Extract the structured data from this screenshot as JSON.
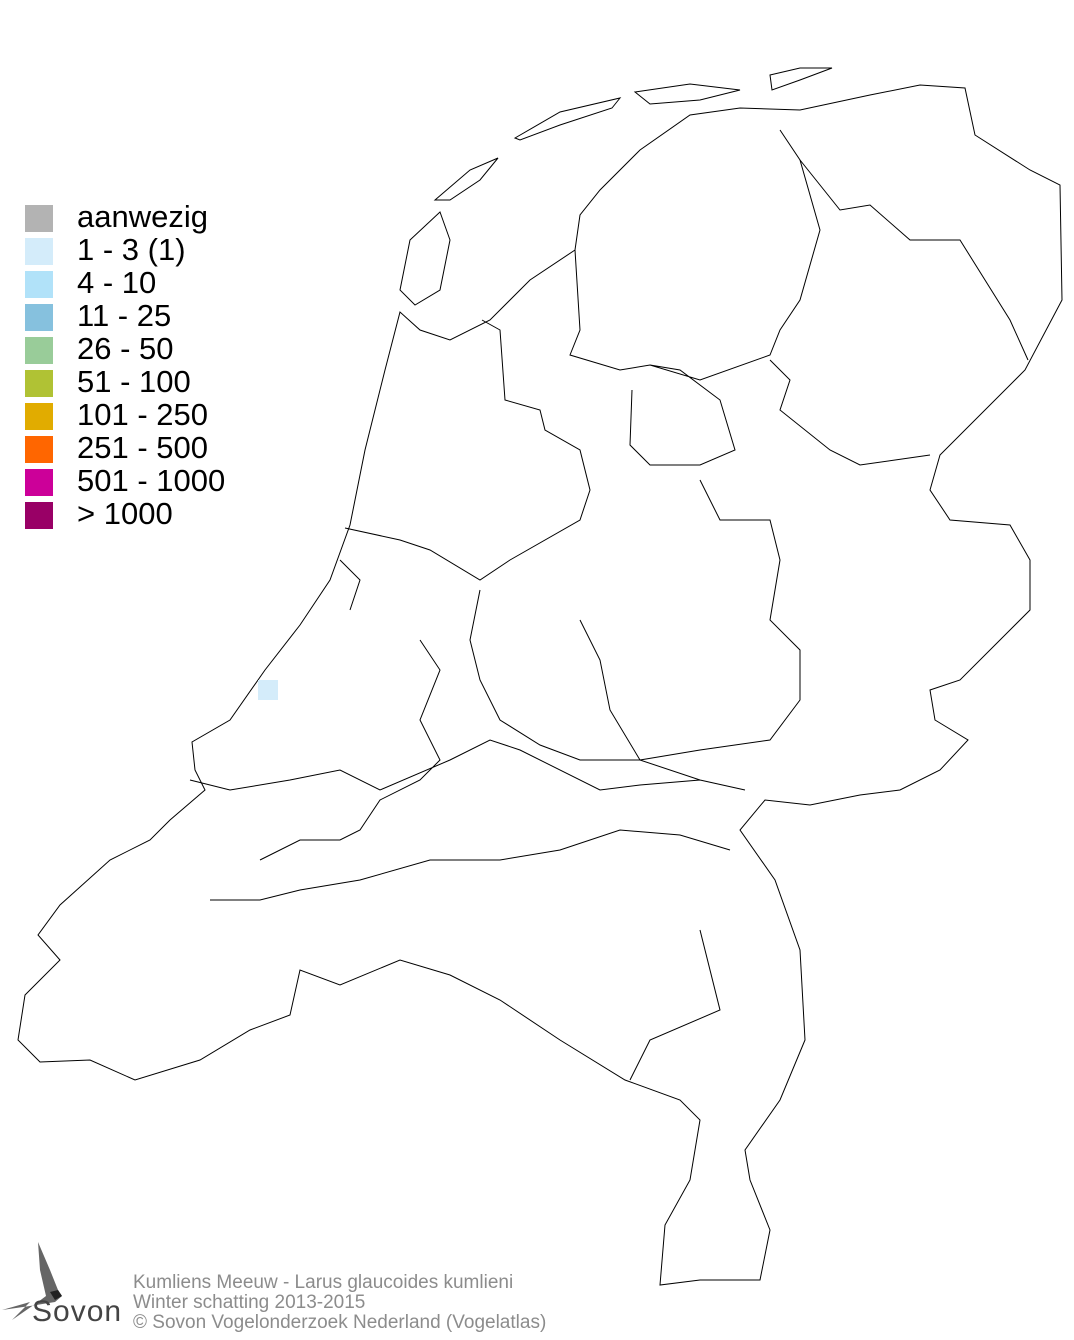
{
  "legend": {
    "items": [
      {
        "label": "aanwezig",
        "color": "#b3b3b3"
      },
      {
        "label": "1 - 3 (1)",
        "color": "#d4ecfa"
      },
      {
        "label": "4 - 10",
        "color": "#b1e2f9"
      },
      {
        "label": "11 - 25",
        "color": "#86c1de"
      },
      {
        "label": "26 - 50",
        "color": "#99cc99"
      },
      {
        "label": "51 - 100",
        "color": "#b0c234"
      },
      {
        "label": "101 - 250",
        "color": "#e1ac00"
      },
      {
        "label": "251 - 500",
        "color": "#ff6600"
      },
      {
        "label": "501 - 1000",
        "color": "#cc0099"
      },
      {
        "label": "> 1000",
        "color": "#990066"
      }
    ]
  },
  "map": {
    "occupied_cells": [
      {
        "class": "1 - 3 (1)",
        "count_class_color": "#d4ecfa"
      }
    ]
  },
  "footer": {
    "species": "Kumliens Meeuw - Larus glaucoides kumlieni",
    "period": "Winter schatting 2013-2015",
    "copyright": "© Sovon Vogelonderzoek Nederland (Vogelatlas)"
  },
  "logo": {
    "text": "Sovon"
  }
}
